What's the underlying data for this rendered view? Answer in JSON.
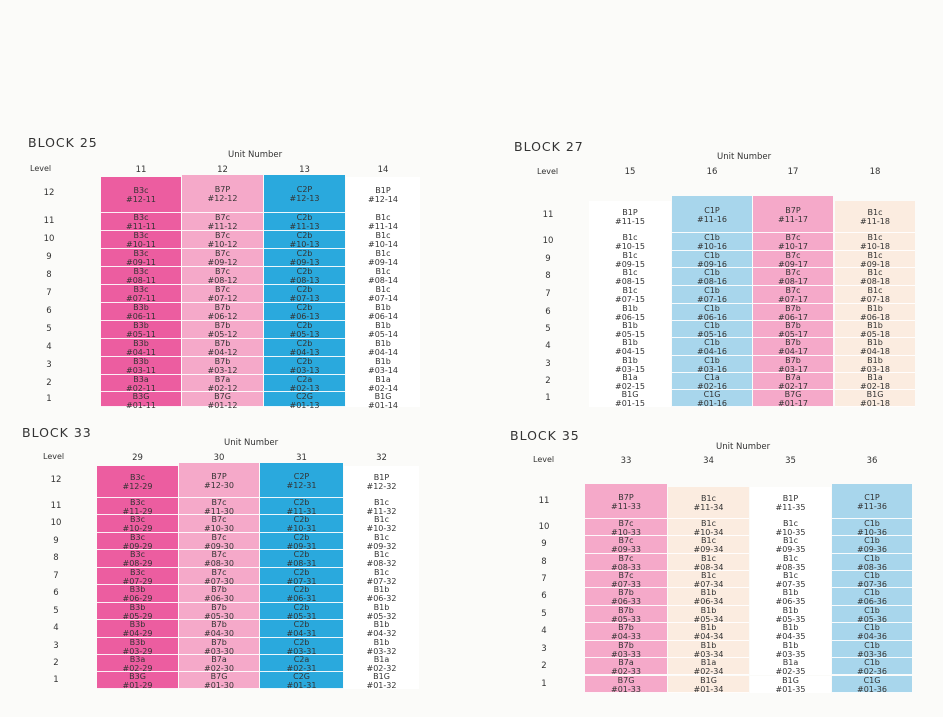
{
  "colors": {
    "magenta": "#ec5da0",
    "pink": "#f5a9c9",
    "blue": "#2aa9dd",
    "lightblue": "#a8d6ec",
    "white": "#ffffff",
    "cream": "#fbece0"
  },
  "blocks": [
    {
      "title": "BLOCK 25",
      "unit_label": "Unit Number",
      "level_label": "Level",
      "levels": [
        "12",
        "11",
        "10",
        "9",
        "8",
        "7",
        "6",
        "5",
        "4",
        "3",
        "2",
        "1"
      ],
      "columns": [
        {
          "unit": "11",
          "color": "magenta",
          "top": "12",
          "cells": [
            {
              "type": "B3c",
              "unit": "#12-11"
            },
            {
              "type": "B3c",
              "unit": "#11-11"
            },
            {
              "type": "B3c",
              "unit": "#10-11"
            },
            {
              "type": "B3c",
              "unit": "#09-11"
            },
            {
              "type": "B3c",
              "unit": "#08-11"
            },
            {
              "type": "B3c",
              "unit": "#07-11"
            },
            {
              "type": "B3b",
              "unit": "#06-11"
            },
            {
              "type": "B3b",
              "unit": "#05-11"
            },
            {
              "type": "B3b",
              "unit": "#04-11"
            },
            {
              "type": "B3b",
              "unit": "#03-11"
            },
            {
              "type": "B3a",
              "unit": "#02-11"
            },
            {
              "type": "B3G",
              "unit": "#01-11"
            }
          ]
        },
        {
          "unit": "12",
          "color": "pink",
          "top": "12",
          "cells": [
            {
              "type": "B7P",
              "unit": "#12-12"
            },
            {
              "type": "B7c",
              "unit": "#11-12"
            },
            {
              "type": "B7c",
              "unit": "#10-12"
            },
            {
              "type": "B7c",
              "unit": "#09-12"
            },
            {
              "type": "B7c",
              "unit": "#08-12"
            },
            {
              "type": "B7c",
              "unit": "#07-12"
            },
            {
              "type": "B7b",
              "unit": "#06-12"
            },
            {
              "type": "B7b",
              "unit": "#05-12"
            },
            {
              "type": "B7b",
              "unit": "#04-12"
            },
            {
              "type": "B7b",
              "unit": "#03-12"
            },
            {
              "type": "B7a",
              "unit": "#02-12"
            },
            {
              "type": "B7G",
              "unit": "#01-12"
            }
          ]
        },
        {
          "unit": "13",
          "color": "blue",
          "top": "12",
          "cells": [
            {
              "type": "C2P",
              "unit": "#12-13"
            },
            {
              "type": "C2b",
              "unit": "#11-13"
            },
            {
              "type": "C2b",
              "unit": "#10-13"
            },
            {
              "type": "C2b",
              "unit": "#09-13"
            },
            {
              "type": "C2b",
              "unit": "#08-13"
            },
            {
              "type": "C2b",
              "unit": "#07-13"
            },
            {
              "type": "C2b",
              "unit": "#06-13"
            },
            {
              "type": "C2b",
              "unit": "#05-13"
            },
            {
              "type": "C2b",
              "unit": "#04-13"
            },
            {
              "type": "C2b",
              "unit": "#03-13"
            },
            {
              "type": "C2a",
              "unit": "#02-13"
            },
            {
              "type": "C2G",
              "unit": "#01-13"
            }
          ]
        },
        {
          "unit": "14",
          "color": "white",
          "top": "12",
          "cells": [
            {
              "type": "B1P",
              "unit": "#12-14"
            },
            {
              "type": "B1c",
              "unit": "#11-14"
            },
            {
              "type": "B1c",
              "unit": "#10-14"
            },
            {
              "type": "B1c",
              "unit": "#09-14"
            },
            {
              "type": "B1c",
              "unit": "#08-14"
            },
            {
              "type": "B1c",
              "unit": "#07-14"
            },
            {
              "type": "B1b",
              "unit": "#06-14"
            },
            {
              "type": "B1b",
              "unit": "#05-14"
            },
            {
              "type": "B1b",
              "unit": "#04-14"
            },
            {
              "type": "B1b",
              "unit": "#03-14"
            },
            {
              "type": "B1a",
              "unit": "#02-14"
            },
            {
              "type": "B1G",
              "unit": "#01-14"
            }
          ]
        }
      ]
    },
    {
      "title": "BLOCK 27",
      "unit_label": "Unit Number",
      "level_label": "Level",
      "levels": [
        "11",
        "10",
        "9",
        "8",
        "7",
        "6",
        "5",
        "4",
        "3",
        "2",
        "1"
      ],
      "columns": [
        {
          "unit": "15",
          "color": "white",
          "top": "11",
          "cells": [
            {
              "type": "B1P",
              "unit": "#11-15"
            },
            {
              "type": "B1c",
              "unit": "#10-15"
            },
            {
              "type": "B1c",
              "unit": "#09-15"
            },
            {
              "type": "B1c",
              "unit": "#08-15"
            },
            {
              "type": "B1c",
              "unit": "#07-15"
            },
            {
              "type": "B1b",
              "unit": "#06-15"
            },
            {
              "type": "B1b",
              "unit": "#05-15"
            },
            {
              "type": "B1b",
              "unit": "#04-15"
            },
            {
              "type": "B1b",
              "unit": "#03-15"
            },
            {
              "type": "B1a",
              "unit": "#02-15"
            },
            {
              "type": "B1G",
              "unit": "#01-15"
            }
          ]
        },
        {
          "unit": "16",
          "color": "lightblue",
          "top": "11",
          "cells": [
            {
              "type": "C1P",
              "unit": "#11-16"
            },
            {
              "type": "C1b",
              "unit": "#10-16"
            },
            {
              "type": "C1b",
              "unit": "#09-16"
            },
            {
              "type": "C1b",
              "unit": "#08-16"
            },
            {
              "type": "C1b",
              "unit": "#07-16"
            },
            {
              "type": "C1b",
              "unit": "#06-16"
            },
            {
              "type": "C1b",
              "unit": "#05-16"
            },
            {
              "type": "C1b",
              "unit": "#04-16"
            },
            {
              "type": "C1b",
              "unit": "#03-16"
            },
            {
              "type": "C1a",
              "unit": "#02-16"
            },
            {
              "type": "C1G",
              "unit": "#01-16"
            }
          ]
        },
        {
          "unit": "17",
          "color": "pink",
          "top": "11",
          "cells": [
            {
              "type": "B7P",
              "unit": "#11-17"
            },
            {
              "type": "B7c",
              "unit": "#10-17"
            },
            {
              "type": "B7c",
              "unit": "#09-17"
            },
            {
              "type": "B7c",
              "unit": "#08-17"
            },
            {
              "type": "B7c",
              "unit": "#07-17"
            },
            {
              "type": "B7b",
              "unit": "#06-17"
            },
            {
              "type": "B7b",
              "unit": "#05-17"
            },
            {
              "type": "B7b",
              "unit": "#04-17"
            },
            {
              "type": "B7b",
              "unit": "#03-17"
            },
            {
              "type": "B7a",
              "unit": "#02-17"
            },
            {
              "type": "B7G",
              "unit": "#01-17"
            }
          ]
        },
        {
          "unit": "18",
          "color": "cream",
          "top": "11",
          "cells": [
            {
              "type": "B1c",
              "unit": "#11-18"
            },
            {
              "type": "B1c",
              "unit": "#10-18"
            },
            {
              "type": "B1c",
              "unit": "#09-18"
            },
            {
              "type": "B1c",
              "unit": "#08-18"
            },
            {
              "type": "B1c",
              "unit": "#07-18"
            },
            {
              "type": "B1b",
              "unit": "#06-18"
            },
            {
              "type": "B1b",
              "unit": "#05-18"
            },
            {
              "type": "B1b",
              "unit": "#04-18"
            },
            {
              "type": "B1b",
              "unit": "#03-18"
            },
            {
              "type": "B1a",
              "unit": "#02-18"
            },
            {
              "type": "B1G",
              "unit": "#01-18"
            }
          ]
        }
      ]
    },
    {
      "title": "BLOCK 33",
      "unit_label": "Unit Number",
      "level_label": "Level",
      "levels": [
        "12",
        "11",
        "10",
        "9",
        "8",
        "7",
        "6",
        "5",
        "4",
        "3",
        "2",
        "1"
      ],
      "columns": [
        {
          "unit": "29",
          "color": "magenta",
          "top": "12",
          "cells": [
            {
              "type": "B3c",
              "unit": "#12-29"
            },
            {
              "type": "B3c",
              "unit": "#11-29"
            },
            {
              "type": "B3c",
              "unit": "#10-29"
            },
            {
              "type": "B3c",
              "unit": "#09-29"
            },
            {
              "type": "B3c",
              "unit": "#08-29"
            },
            {
              "type": "B3c",
              "unit": "#07-29"
            },
            {
              "type": "B3b",
              "unit": "#06-29"
            },
            {
              "type": "B3b",
              "unit": "#05-29"
            },
            {
              "type": "B3b",
              "unit": "#04-29"
            },
            {
              "type": "B3b",
              "unit": "#03-29"
            },
            {
              "type": "B3a",
              "unit": "#02-29"
            },
            {
              "type": "B3G",
              "unit": "#01-29"
            }
          ]
        },
        {
          "unit": "30",
          "color": "pink",
          "top": "12",
          "cells": [
            {
              "type": "B7P",
              "unit": "#12-30"
            },
            {
              "type": "B7c",
              "unit": "#11-30"
            },
            {
              "type": "B7c",
              "unit": "#10-30"
            },
            {
              "type": "B7c",
              "unit": "#09-30"
            },
            {
              "type": "B7c",
              "unit": "#08-30"
            },
            {
              "type": "B7c",
              "unit": "#07-30"
            },
            {
              "type": "B7b",
              "unit": "#06-30"
            },
            {
              "type": "B7b",
              "unit": "#05-30"
            },
            {
              "type": "B7b",
              "unit": "#04-30"
            },
            {
              "type": "B7b",
              "unit": "#03-30"
            },
            {
              "type": "B7a",
              "unit": "#02-30"
            },
            {
              "type": "B7G",
              "unit": "#01-30"
            }
          ]
        },
        {
          "unit": "31",
          "color": "blue",
          "top": "12",
          "cells": [
            {
              "type": "C2P",
              "unit": "#12-31"
            },
            {
              "type": "C2b",
              "unit": "#11-31"
            },
            {
              "type": "C2b",
              "unit": "#10-31"
            },
            {
              "type": "C2b",
              "unit": "#09-31"
            },
            {
              "type": "C2b",
              "unit": "#08-31"
            },
            {
              "type": "C2b",
              "unit": "#07-31"
            },
            {
              "type": "C2b",
              "unit": "#06-31"
            },
            {
              "type": "C2b",
              "unit": "#05-31"
            },
            {
              "type": "C2b",
              "unit": "#04-31"
            },
            {
              "type": "C2b",
              "unit": "#03-31"
            },
            {
              "type": "C2a",
              "unit": "#02-31"
            },
            {
              "type": "C2G",
              "unit": "#01-31"
            }
          ]
        },
        {
          "unit": "32",
          "color": "white",
          "top": "12",
          "cells": [
            {
              "type": "B1P",
              "unit": "#12-32"
            },
            {
              "type": "B1c",
              "unit": "#11-32"
            },
            {
              "type": "B1c",
              "unit": "#10-32"
            },
            {
              "type": "B1c",
              "unit": "#09-32"
            },
            {
              "type": "B1c",
              "unit": "#08-32"
            },
            {
              "type": "B1c",
              "unit": "#07-32"
            },
            {
              "type": "B1b",
              "unit": "#06-32"
            },
            {
              "type": "B1b",
              "unit": "#05-32"
            },
            {
              "type": "B1b",
              "unit": "#04-32"
            },
            {
              "type": "B1b",
              "unit": "#03-32"
            },
            {
              "type": "B1a",
              "unit": "#02-32"
            },
            {
              "type": "B1G",
              "unit": "#01-32"
            }
          ]
        }
      ]
    },
    {
      "title": "BLOCK 35",
      "unit_label": "Unit Number",
      "level_label": "Level",
      "levels": [
        "11",
        "10",
        "9",
        "8",
        "7",
        "6",
        "5",
        "4",
        "3",
        "2",
        "1"
      ],
      "columns": [
        {
          "unit": "33",
          "color": "pink",
          "top": "11",
          "cells": [
            {
              "type": "B7P",
              "unit": "#11-33"
            },
            {
              "type": "B7c",
              "unit": "#10-33"
            },
            {
              "type": "B7c",
              "unit": "#09-33"
            },
            {
              "type": "B7c",
              "unit": "#08-33"
            },
            {
              "type": "B7c",
              "unit": "#07-33"
            },
            {
              "type": "B7b",
              "unit": "#06-33"
            },
            {
              "type": "B7b",
              "unit": "#05-33"
            },
            {
              "type": "B7b",
              "unit": "#04-33"
            },
            {
              "type": "B7b",
              "unit": "#03-33"
            },
            {
              "type": "B7a",
              "unit": "#02-33"
            },
            {
              "type": "B7G",
              "unit": "#01-33"
            }
          ]
        },
        {
          "unit": "34",
          "color": "cream",
          "top": "11",
          "cells": [
            {
              "type": "B1c",
              "unit": "#11-34"
            },
            {
              "type": "B1c",
              "unit": "#10-34"
            },
            {
              "type": "B1c",
              "unit": "#09-34"
            },
            {
              "type": "B1c",
              "unit": "#08-34"
            },
            {
              "type": "B1c",
              "unit": "#07-34"
            },
            {
              "type": "B1b",
              "unit": "#06-34"
            },
            {
              "type": "B1b",
              "unit": "#05-34"
            },
            {
              "type": "B1b",
              "unit": "#04-34"
            },
            {
              "type": "B1b",
              "unit": "#03-34"
            },
            {
              "type": "B1a",
              "unit": "#02-34"
            },
            {
              "type": "B1G",
              "unit": "#01-34"
            }
          ]
        },
        {
          "unit": "35",
          "color": "white",
          "top": "11",
          "cells": [
            {
              "type": "B1P",
              "unit": "#11-35"
            },
            {
              "type": "B1c",
              "unit": "#10-35"
            },
            {
              "type": "B1c",
              "unit": "#09-35"
            },
            {
              "type": "B1c",
              "unit": "#08-35"
            },
            {
              "type": "B1c",
              "unit": "#07-35"
            },
            {
              "type": "B1b",
              "unit": "#06-35"
            },
            {
              "type": "B1b",
              "unit": "#05-35"
            },
            {
              "type": "B1b",
              "unit": "#04-35"
            },
            {
              "type": "B1b",
              "unit": "#03-35"
            },
            {
              "type": "B1a",
              "unit": "#02-35"
            },
            {
              "type": "B1G",
              "unit": "#01-35"
            }
          ]
        },
        {
          "unit": "36",
          "color": "lightblue",
          "top": "11",
          "cells": [
            {
              "type": "C1P",
              "unit": "#11-36"
            },
            {
              "type": "C1b",
              "unit": "#10-36"
            },
            {
              "type": "C1b",
              "unit": "#09-36"
            },
            {
              "type": "C1b",
              "unit": "#08-36"
            },
            {
              "type": "C1b",
              "unit": "#07-36"
            },
            {
              "type": "C1b",
              "unit": "#06-36"
            },
            {
              "type": "C1b",
              "unit": "#05-36"
            },
            {
              "type": "C1b",
              "unit": "#04-36"
            },
            {
              "type": "C1b",
              "unit": "#03-36"
            },
            {
              "type": "C1b",
              "unit": "#02-36"
            },
            {
              "type": "C1G",
              "unit": "#01-36"
            }
          ]
        }
      ]
    }
  ]
}
